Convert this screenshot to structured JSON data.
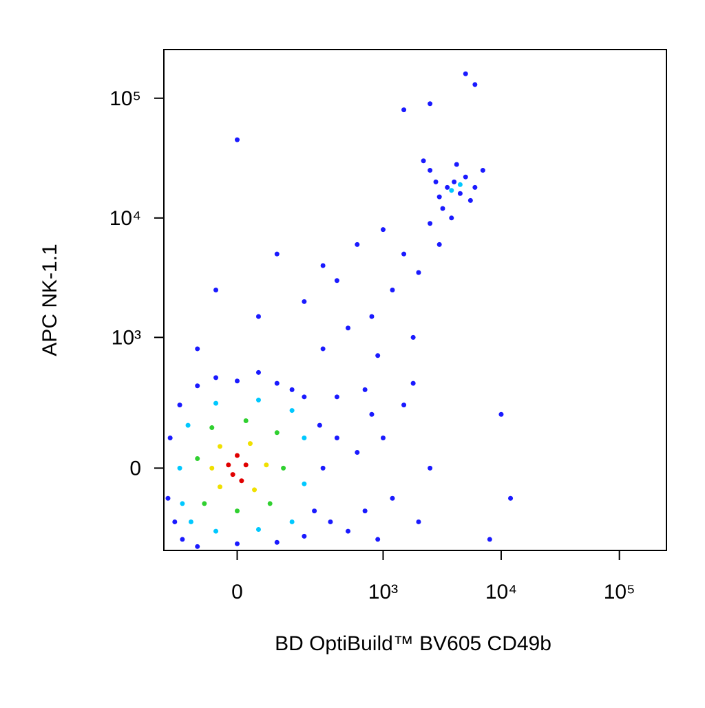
{
  "chart_data": {
    "type": "scatter",
    "xlabel": "BD OptiBuild™ BV605 CD49b",
    "ylabel": "APC NK-1.1",
    "xscale": "biexponential",
    "yscale": "biexponential",
    "xlim": [
      -230,
      250000
    ],
    "ylim": [
      -380,
      255000
    ],
    "xticks": [
      0,
      {
        "value": 1000,
        "label": "10³"
      },
      {
        "value": 10000,
        "label": "10⁴"
      },
      {
        "value": 100000,
        "label": "10⁵"
      }
    ],
    "yticks": [
      0,
      {
        "value": 1000,
        "label": "10³"
      },
      {
        "value": 10000,
        "label": "10⁴"
      },
      {
        "value": 100000,
        "label": "10⁵"
      }
    ],
    "series": [
      {
        "color": "#1a1aff",
        "x": [
          -150,
          -100,
          0,
          100,
          200,
          250,
          300,
          280,
          200,
          100,
          0,
          -100,
          -160,
          -200,
          -210,
          -180,
          150,
          -50,
          50,
          350,
          400,
          500,
          600,
          700,
          800,
          900,
          1000,
          1200,
          1500,
          2000,
          1800,
          2500,
          700,
          400,
          300,
          500,
          200,
          100,
          400,
          800,
          1200,
          1500,
          2000,
          600,
          300,
          50,
          -50,
          1000,
          2500,
          3000,
          1800,
          900,
          -100,
          3000,
          3500,
          4000,
          4500,
          5000,
          2500,
          6000,
          3200,
          4200,
          5500,
          2800,
          7000,
          3800,
          2200,
          5000,
          2500,
          0,
          6000,
          1500,
          8000,
          10000,
          12000
        ],
        "y": [
          -300,
          -350,
          -330,
          -320,
          -280,
          -150,
          0,
          150,
          300,
          400,
          420,
          380,
          250,
          100,
          -100,
          -200,
          350,
          450,
          500,
          -200,
          100,
          -250,
          50,
          -150,
          200,
          -300,
          100,
          -100,
          250,
          -200,
          400,
          0,
          350,
          300,
          800,
          1200,
          2000,
          5000,
          3000,
          1500,
          2500,
          5000,
          3500,
          6000,
          4000,
          1500,
          2500,
          8000,
          9000,
          6000,
          1000,
          700,
          800,
          15000,
          18000,
          20000,
          16000,
          22000,
          25000,
          18000,
          12000,
          28000,
          14000,
          20000,
          25000,
          10000,
          30000,
          160000,
          90000,
          45000,
          130000,
          80000,
          -300,
          200,
          -100
        ]
      },
      {
        "color": "#00c8ff",
        "x": [
          -120,
          -50,
          50,
          150,
          200,
          200,
          150,
          50,
          -50,
          -130,
          -160,
          -150,
          3800,
          4500
        ],
        "y": [
          -200,
          -250,
          -240,
          -200,
          -50,
          100,
          220,
          280,
          260,
          150,
          0,
          -120,
          17000,
          19000
        ]
      },
      {
        "color": "#30d030",
        "x": [
          -80,
          0,
          80,
          120,
          100,
          20,
          -60,
          -100
        ],
        "y": [
          -120,
          -150,
          -120,
          0,
          120,
          170,
          140,
          30
        ]
      },
      {
        "color": "#f0e000",
        "x": [
          -40,
          40,
          70,
          30,
          -40,
          -60
        ],
        "y": [
          -60,
          -70,
          10,
          80,
          70,
          0
        ]
      },
      {
        "color": "#e00000",
        "x": [
          -10,
          20,
          0,
          -20,
          10
        ],
        "y": [
          -20,
          10,
          40,
          10,
          -40
        ]
      }
    ]
  }
}
